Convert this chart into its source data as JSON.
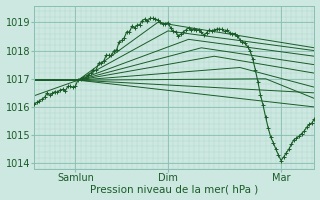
{
  "title": "",
  "xlabel": "Pression niveau de la mer( hPa )",
  "bg_color": "#cce8e0",
  "plot_bg_color": "#cce8e0",
  "grid_color_minor": "#b0d8cc",
  "grid_color_major": "#88bfb0",
  "line_color": "#1a5c28",
  "marker": "+",
  "ylim": [
    1013.8,
    1019.6
  ],
  "yticks": [
    1014,
    1015,
    1016,
    1017,
    1018,
    1019
  ],
  "xtick_labels": [
    "Samlun",
    "Dim",
    "Mar"
  ],
  "xtick_positions": [
    16,
    52,
    96
  ],
  "total_points": 110,
  "converge_t": 17,
  "converge_val": 1016.95,
  "xlabel_fontsize": 7.5,
  "ytick_fontsize": 7,
  "xtick_fontsize": 7
}
